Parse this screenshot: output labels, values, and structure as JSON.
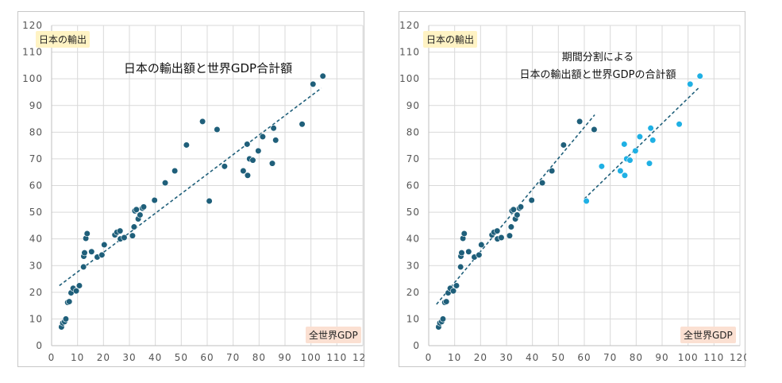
{
  "colors": {
    "dark": "#1f5f7a",
    "light": "#1fb0e4",
    "trend": "#1f5f7a"
  },
  "panels": [
    {
      "ylabel": "日本の輸出",
      "xlabel": "全世界GDP",
      "title_lines": [
        "日本の輸出額と世界GDP合計額"
      ]
    },
    {
      "ylabel": "日本の輸出",
      "xlabel": "全世界GDP",
      "title_lines": [
        "期間分割による",
        "日本の輸出額と世界GDPの合計額"
      ]
    }
  ],
  "chart_data": [
    {
      "type": "scatter",
      "title": "日本の輸出額と世界GDP合計額",
      "xlabel": "全世界GDP",
      "ylabel": "日本の輸出",
      "xlim": [
        0,
        120
      ],
      "ylim": [
        0,
        120
      ],
      "xticks": [
        0,
        10,
        20,
        30,
        40,
        50,
        60,
        70,
        80,
        90,
        100,
        110,
        120
      ],
      "yticks": [
        0,
        10,
        20,
        30,
        40,
        50,
        60,
        70,
        80,
        90,
        100,
        110,
        120
      ],
      "grid": true,
      "series": [
        {
          "color": "#1f5f7a",
          "points": [
            [
              3.8,
              7
            ],
            [
              4.3,
              8.5
            ],
            [
              5,
              9
            ],
            [
              5.5,
              10
            ],
            [
              6.2,
              16.2
            ],
            [
              6.8,
              16.5
            ],
            [
              7.5,
              19.8
            ],
            [
              8.3,
              21.5
            ],
            [
              9.5,
              20.5
            ],
            [
              10.7,
              22.5
            ],
            [
              12.3,
              29.5
            ],
            [
              12.4,
              33.5
            ],
            [
              12.7,
              34.8
            ],
            [
              13.2,
              40.2
            ],
            [
              13.7,
              42
            ],
            [
              15.4,
              35.2
            ],
            [
              17.6,
              33.2
            ],
            [
              19.4,
              34
            ],
            [
              20.3,
              37.8
            ],
            [
              24.4,
              41.5
            ],
            [
              25.2,
              42.5
            ],
            [
              26.4,
              43
            ],
            [
              26.5,
              40
            ],
            [
              28,
              40.5
            ],
            [
              31.2,
              41.2
            ],
            [
              31.8,
              44.5
            ],
            [
              32.1,
              50.5
            ],
            [
              32.7,
              51
            ],
            [
              33.4,
              47.5
            ],
            [
              34.1,
              49
            ],
            [
              35,
              51.5
            ],
            [
              35.5,
              52
            ],
            [
              39.7,
              54.5
            ],
            [
              43.8,
              61
            ],
            [
              47.5,
              65.5
            ],
            [
              52,
              75.2
            ],
            [
              58.2,
              84
            ],
            [
              60.8,
              54.2
            ],
            [
              63.8,
              81
            ],
            [
              66.7,
              67.2
            ],
            [
              73.9,
              65.5
            ],
            [
              75.4,
              75.5
            ],
            [
              75.6,
              63.8
            ],
            [
              76.3,
              70
            ],
            [
              77.6,
              69.5
            ],
            [
              79.7,
              73
            ],
            [
              81.4,
              78.3
            ],
            [
              85.1,
              68.3
            ],
            [
              85.6,
              81.5
            ],
            [
              86.4,
              77
            ],
            [
              96.6,
              83
            ],
            [
              100.8,
              98
            ],
            [
              104.6,
              101
            ]
          ]
        }
      ],
      "trendlines": [
        {
          "x": [
            3,
            104
          ],
          "y": [
            22.5,
            96.5
          ]
        }
      ]
    },
    {
      "type": "scatter",
      "title": "期間分割による 日本の輸出額と世界GDPの合計額",
      "xlabel": "全世界GDP",
      "ylabel": "日本の輸出",
      "xlim": [
        0,
        120
      ],
      "ylim": [
        0,
        120
      ],
      "xticks": [
        0,
        10,
        20,
        30,
        40,
        50,
        60,
        70,
        80,
        90,
        100,
        110,
        120
      ],
      "yticks": [
        0,
        10,
        20,
        30,
        40,
        50,
        60,
        70,
        80,
        90,
        100,
        110,
        120
      ],
      "grid": true,
      "series": [
        {
          "color": "#1f5f7a",
          "points": [
            [
              3.8,
              7
            ],
            [
              4.3,
              8.5
            ],
            [
              5,
              9
            ],
            [
              5.5,
              10
            ],
            [
              6.2,
              16.2
            ],
            [
              6.8,
              16.5
            ],
            [
              7.5,
              19.8
            ],
            [
              8.3,
              21.5
            ],
            [
              9.5,
              20.5
            ],
            [
              10.7,
              22.5
            ],
            [
              12.3,
              29.5
            ],
            [
              12.4,
              33.5
            ],
            [
              12.7,
              34.8
            ],
            [
              13.2,
              40.2
            ],
            [
              13.7,
              42
            ],
            [
              15.4,
              35.2
            ],
            [
              17.6,
              33.2
            ],
            [
              19.4,
              34
            ],
            [
              20.3,
              37.8
            ],
            [
              24.4,
              41.5
            ],
            [
              25.2,
              42.5
            ],
            [
              26.4,
              43
            ],
            [
              26.5,
              40
            ],
            [
              28,
              40.5
            ],
            [
              31.2,
              41.2
            ],
            [
              31.8,
              44.5
            ],
            [
              32.1,
              50.5
            ],
            [
              32.7,
              51
            ],
            [
              33.4,
              47.5
            ],
            [
              34.1,
              49
            ],
            [
              35,
              51.5
            ],
            [
              35.5,
              52
            ],
            [
              39.7,
              54.5
            ],
            [
              43.8,
              61
            ],
            [
              47.5,
              65.5
            ],
            [
              52,
              75.2
            ],
            [
              58.2,
              84
            ],
            [
              63.8,
              81
            ]
          ]
        },
        {
          "color": "#1fb0e4",
          "points": [
            [
              60.8,
              54.2
            ],
            [
              66.7,
              67.2
            ],
            [
              73.9,
              65.5
            ],
            [
              75.4,
              75.5
            ],
            [
              75.6,
              63.8
            ],
            [
              76.3,
              70
            ],
            [
              77.6,
              69.5
            ],
            [
              79.7,
              73
            ],
            [
              81.4,
              78.3
            ],
            [
              85.1,
              68.3
            ],
            [
              85.6,
              81.5
            ],
            [
              86.4,
              77
            ],
            [
              96.6,
              83
            ],
            [
              100.8,
              98
            ],
            [
              104.6,
              101
            ]
          ]
        }
      ],
      "trendlines": [
        {
          "x": [
            3,
            64
          ],
          "y": [
            15.5,
            86.5
          ]
        },
        {
          "x": [
            60,
            104
          ],
          "y": [
            55,
            96.5
          ]
        }
      ]
    }
  ]
}
